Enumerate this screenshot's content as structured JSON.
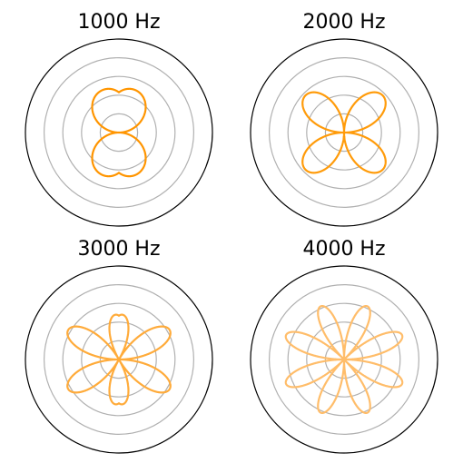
{
  "chart_data": [
    {
      "type": "line",
      "projection": "polar",
      "title": "1000 Hz",
      "color": "#ff9500",
      "rmax": 1.0,
      "rgrid": [
        0.2,
        0.4,
        0.6,
        0.8
      ],
      "angular_ticks_shown": false,
      "radial_labels_shown": false,
      "series": [
        {
          "lobes": 1,
          "r_min": 0.0,
          "r_max": 0.68,
          "theta_range_deg": [
            0,
            360
          ]
        }
      ]
    },
    {
      "type": "line",
      "projection": "polar",
      "title": "2000 Hz",
      "color": "#ff9b0a",
      "rmax": 1.0,
      "rgrid": [
        0.2,
        0.4,
        0.6,
        0.8
      ],
      "angular_ticks_shown": false,
      "radial_labels_shown": false,
      "series": [
        {
          "lobes": 2,
          "r_min": 0.0,
          "r_max": 0.68,
          "theta_range_deg": [
            0,
            360
          ]
        }
      ]
    },
    {
      "type": "line",
      "projection": "polar",
      "title": "3000 Hz",
      "color": "#ffab3a",
      "rmax": 1.0,
      "rgrid": [
        0.2,
        0.4,
        0.6,
        0.8
      ],
      "angular_ticks_shown": false,
      "radial_labels_shown": false,
      "series": [
        {
          "lobes": 3,
          "r_min": 0.0,
          "r_max": 0.74,
          "theta_range_deg": [
            0,
            360
          ]
        }
      ]
    },
    {
      "type": "line",
      "projection": "polar",
      "title": "4000 Hz",
      "color": "#ffbd6a",
      "rmax": 1.0,
      "rgrid": [
        0.2,
        0.4,
        0.6,
        0.8
      ],
      "angular_ticks_shown": false,
      "radial_labels_shown": false,
      "series": [
        {
          "lobes": 4,
          "r_min": 0.0,
          "r_max": 0.8,
          "theta_range_deg": [
            0,
            360
          ]
        }
      ]
    }
  ]
}
